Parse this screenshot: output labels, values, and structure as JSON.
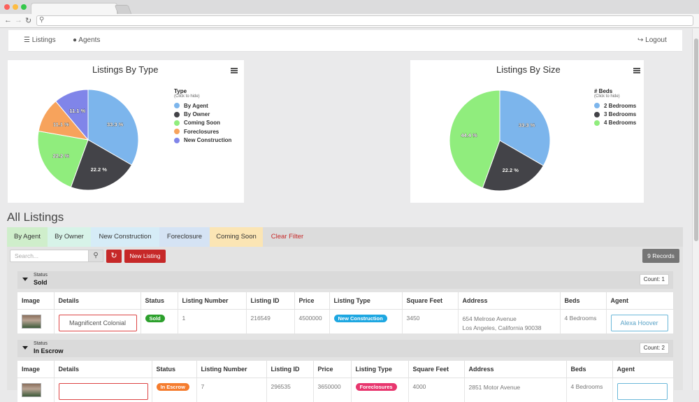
{
  "nav": {
    "listings": "Listings",
    "agents": "Agents",
    "logout": "Logout"
  },
  "colors": {
    "blue": "#7cb5ec",
    "dark": "#434348",
    "green": "#90ed7d",
    "orange": "#f7a35c",
    "purple": "#8085e9",
    "red": "#c62828"
  },
  "charts": {
    "type_title": "Listings By Type",
    "type_legend_title": "Type",
    "type_legend_sub": "(Click to hide)",
    "size_title": "Listings By Size",
    "size_legend_title": "# Beds",
    "size_legend_sub": "(Click to hide)"
  },
  "chart_data": [
    {
      "type": "pie",
      "title": "Listings By Type",
      "categories": [
        "By Agent",
        "By Owner",
        "Coming Soon",
        "Foreclosures",
        "New Construction"
      ],
      "values": [
        33.3,
        22.2,
        22.2,
        11.1,
        11.1
      ],
      "labels": [
        "33.3 %",
        "22.2 %",
        "22.2 %",
        "11.1 %",
        "11.1 %"
      ],
      "colors": [
        "#7cb5ec",
        "#434348",
        "#90ed7d",
        "#f7a35c",
        "#8085e9"
      ],
      "legend_position": "right"
    },
    {
      "type": "pie",
      "title": "Listings By Size",
      "categories": [
        "2 Bedrooms",
        "3 Bedrooms",
        "4 Bedrooms"
      ],
      "values": [
        33.3,
        22.2,
        44.4
      ],
      "labels": [
        "33.3 %",
        "22.2 %",
        "44.4 %"
      ],
      "colors": [
        "#7cb5ec",
        "#434348",
        "#90ed7d"
      ],
      "legend_position": "right"
    }
  ],
  "all_listings_title": "All Listings",
  "filters": [
    {
      "label": "By Agent",
      "color": "#cfeecb"
    },
    {
      "label": "By Owner",
      "color": "#d7f3e8"
    },
    {
      "label": "New Construction",
      "color": "#d6ecf7"
    },
    {
      "label": "Foreclosure",
      "color": "#d5e3f4"
    },
    {
      "label": "Coming Soon",
      "color": "#fbe5b4"
    },
    {
      "label": "Clear Filter",
      "color": "#dcdcdc"
    }
  ],
  "toolbar": {
    "search_placeholder": "Search...",
    "new_listing": "New Listing",
    "records": "9 Records"
  },
  "groups": [
    {
      "label": "Status",
      "value": "Sold",
      "count": "Count: 1",
      "columns": [
        "Image",
        "Details",
        "Status",
        "Listing Number",
        "Listing ID",
        "Price",
        "Listing Type",
        "Square Feet",
        "Address",
        "Beds",
        "Agent"
      ],
      "rows": [
        {
          "details": "Magnificent Colonial",
          "status": "Sold",
          "status_color": "#2ca02c",
          "number": "1",
          "id": "216549",
          "price": "4500000",
          "type": "New Construction",
          "type_color": "#1ea7e1",
          "sqft": "3450",
          "addr1": "654 Melrose Avenue",
          "addr2": "Los Angeles, California 90038",
          "beds": "4 Bedrooms",
          "agent": "Alexa Hoover"
        }
      ]
    },
    {
      "label": "Status",
      "value": "In Escrow",
      "count": "Count: 2",
      "columns": [
        "Image",
        "Details",
        "Status",
        "Listing Number",
        "Listing ID",
        "Price",
        "Listing Type",
        "Square Feet",
        "Address",
        "Beds",
        "Agent"
      ],
      "rows": [
        {
          "details": "",
          "status": "In Escrow",
          "status_color": "#f57c2e",
          "number": "7",
          "id": "296535",
          "price": "3650000",
          "type": "Foreclosures",
          "type_color": "#e8366e",
          "sqft": "4000",
          "addr1": "2851 Motor Avenue",
          "addr2": "",
          "beds": "4 Bedrooms",
          "agent": ""
        }
      ]
    }
  ]
}
